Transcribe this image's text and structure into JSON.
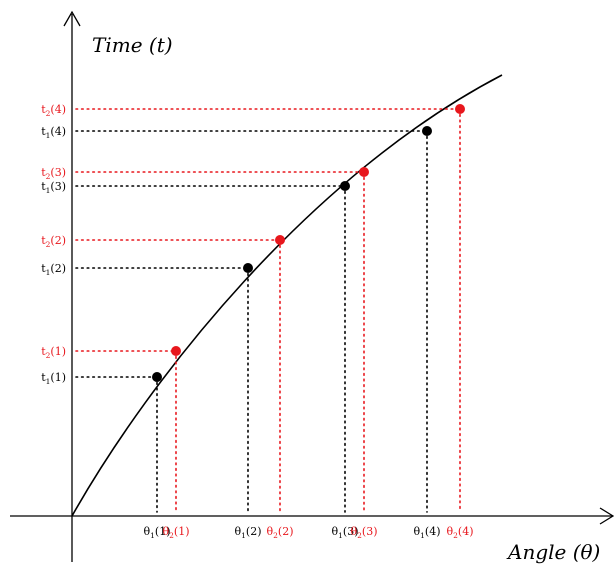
{
  "axes": {
    "y_title": "Time (t)",
    "x_title": "Angle (θ)"
  },
  "colors": {
    "black_series": "#000000",
    "red_series": "#e8171d",
    "curve": "#000000"
  },
  "series": [
    {
      "key": "s1",
      "color_key": "black_series",
      "points": [
        {
          "x_label": {
            "sym": "θ",
            "sub": "1",
            "arg": "(1)"
          },
          "y_label": {
            "sym": "t",
            "sub": "1",
            "arg": "(1)"
          }
        },
        {
          "x_label": {
            "sym": "θ",
            "sub": "1",
            "arg": "(2)"
          },
          "y_label": {
            "sym": "t",
            "sub": "1",
            "arg": "(2)"
          }
        },
        {
          "x_label": {
            "sym": "θ",
            "sub": "1",
            "arg": "(3)"
          },
          "y_label": {
            "sym": "t",
            "sub": "1",
            "arg": "(3)"
          }
        },
        {
          "x_label": {
            "sym": "θ",
            "sub": "1",
            "arg": "(4)"
          },
          "y_label": {
            "sym": "t",
            "sub": "1",
            "arg": "(4)"
          }
        }
      ]
    },
    {
      "key": "s2",
      "color_key": "red_series",
      "points": [
        {
          "x_label": {
            "sym": "θ",
            "sub": "2",
            "arg": "(1)"
          },
          "y_label": {
            "sym": "t",
            "sub": "2",
            "arg": "(1)"
          }
        },
        {
          "x_label": {
            "sym": "θ",
            "sub": "2",
            "arg": "(2)"
          },
          "y_label": {
            "sym": "t",
            "sub": "2",
            "arg": "(2)"
          }
        },
        {
          "x_label": {
            "sym": "θ",
            "sub": "2",
            "arg": "(3)"
          },
          "y_label": {
            "sym": "t",
            "sub": "2",
            "arg": "(3)"
          }
        },
        {
          "x_label": {
            "sym": "θ",
            "sub": "2",
            "arg": "(4)"
          },
          "y_label": {
            "sym": "t",
            "sub": "2",
            "arg": "(4)"
          }
        }
      ]
    }
  ]
}
